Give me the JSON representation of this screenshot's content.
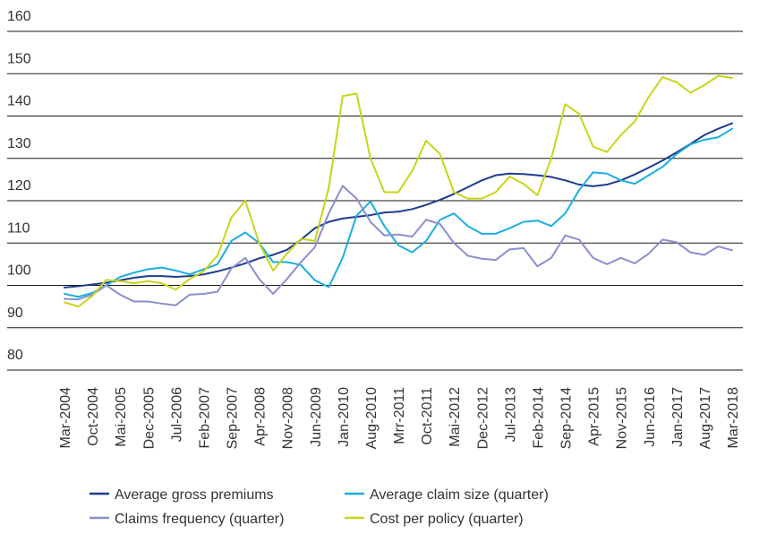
{
  "chart_data": {
    "type": "line",
    "categories": [
      "Mar-2004",
      null,
      "Oct-2004",
      null,
      "Mai-2005",
      null,
      "Dec-2005",
      null,
      "Jul-2006",
      null,
      "Feb-2007",
      null,
      "Sep-2007",
      null,
      "Apr-2008",
      null,
      "Nov-2008",
      null,
      "Jun-2009",
      null,
      "Jan-2010",
      null,
      "Aug-2010",
      null,
      "Mrr-2011",
      null,
      "Oct-2011",
      null,
      "Mai-2012",
      null,
      "Dec-2012",
      null,
      "Jul-2013",
      null,
      "Feb-2014",
      null,
      "Sep-2014",
      null,
      "Apr-2015",
      null,
      "Nov-2015",
      null,
      "Jun-2016",
      null,
      "Jan-2017",
      null,
      "Aug-2017",
      null,
      "Mar-2018"
    ],
    "series": [
      {
        "name": "Average gross premiums",
        "color": "#1e3c8c",
        "values": [
          99.5,
          99.8,
          100.2,
          100.6,
          101.2,
          101.8,
          102.2,
          102.2,
          102,
          102.2,
          102.6,
          103.3,
          104.2,
          105.2,
          106.4,
          107.2,
          108.4,
          110.8,
          113.5,
          115,
          115.8,
          116.2,
          116.6,
          117.2,
          117.4,
          118,
          119,
          120.2,
          121.6,
          123.2,
          124.8,
          126,
          126.4,
          126.3,
          126,
          125.6,
          124.8,
          123.8,
          123.4,
          123.8,
          124.8,
          126.2,
          127.8,
          129.5,
          131.4,
          133.4,
          135.5,
          137,
          138.3
        ]
      },
      {
        "name": "Average claim size (quarter)",
        "color": "#1aaee0",
        "values": [
          98,
          97.3,
          98.2,
          100,
          102,
          103,
          103.8,
          104.2,
          103.5,
          102.6,
          103.8,
          105,
          110.5,
          112.5,
          110,
          105.5,
          105.5,
          104.8,
          101.2,
          99.6,
          106.5,
          116.5,
          119.8,
          114,
          109.5,
          107.8,
          110.5,
          115.5,
          117,
          114,
          112.2,
          112.2,
          113.5,
          115,
          115.3,
          114,
          117,
          122.5,
          126.7,
          126.4,
          124.8,
          124,
          126,
          128,
          131,
          133.3,
          134.4,
          135,
          137
        ]
      },
      {
        "name": "Claims frequency (quarter)",
        "color": "#8a8fcf",
        "values": [
          96.8,
          96.7,
          97.8,
          100,
          97.8,
          96.2,
          96.2,
          95.7,
          95.3,
          97.8,
          98,
          98.5,
          104,
          106.5,
          101.5,
          98,
          101.5,
          105.5,
          109,
          117,
          123.5,
          120.5,
          115,
          111.8,
          112,
          111.5,
          115.5,
          114.5,
          110,
          107,
          106.3,
          106,
          108.5,
          108.8,
          104.5,
          106.5,
          111.8,
          110.8,
          106.5,
          105,
          106.5,
          105.2,
          107.5,
          110.8,
          110.2,
          107.8,
          107.2,
          109.2,
          108.3
        ]
      },
      {
        "name": "Cost per policy (quarter)",
        "color": "#c8d41a",
        "values": [
          96,
          95,
          97.5,
          101.3,
          101,
          100.5,
          101,
          100.5,
          99,
          101.5,
          103.3,
          107,
          116,
          120,
          110,
          103.5,
          107.5,
          111,
          110.5,
          123,
          144.7,
          145.3,
          130,
          122,
          122,
          127,
          134.2,
          131,
          122,
          120.5,
          120.5,
          122,
          125.7,
          124,
          121.3,
          130,
          142.8,
          140.5,
          132.8,
          131.5,
          135.5,
          138.7,
          144.5,
          149.2,
          148,
          145.5,
          147.3,
          149.5,
          149
        ]
      }
    ],
    "ylim": [
      80,
      160
    ],
    "yticks": [
      80,
      90,
      100,
      110,
      120,
      130,
      140,
      150,
      160
    ],
    "grid": true
  }
}
